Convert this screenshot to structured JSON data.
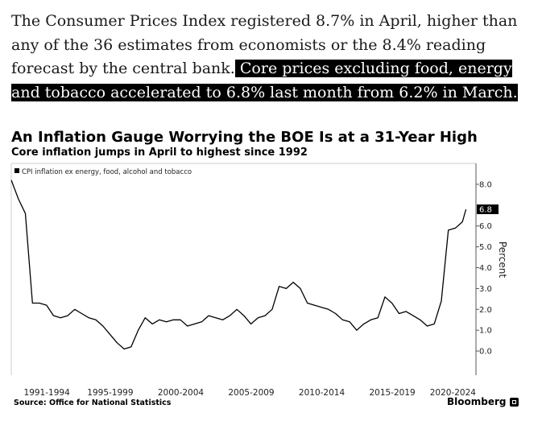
{
  "article": {
    "plain_text": "The Consumer Prices Index registered 8.7% in April, higher than any of the 36 estimates from economists or the 8.4% reading forecast by the central bank.",
    "highlighted_text": " Core prices excluding food, energy and tobacco accelerated to 6.8% last month from 6.2% in March."
  },
  "chart_data": {
    "type": "line",
    "title": "An Inflation Gauge Worrying the BOE Is at a 31-Year High",
    "subtitle": "Core inflation jumps in April to highest since 1992",
    "xlabel": "",
    "ylabel": "Percent",
    "categories": [
      "1991-1994",
      "1995-1999",
      "2000-2004",
      "2005-2009",
      "2010-2014",
      "2015-2019",
      "2020-2024"
    ],
    "x_range": [
      1991.0,
      2023.5
    ],
    "ylim": [
      -1.0,
      9.0
    ],
    "y_ticks": [
      0.0,
      1.0,
      2.0,
      3.0,
      4.0,
      5.0,
      6.0,
      8.0
    ],
    "grid": false,
    "legend_position": "top-left",
    "latest_value_label": "6.8",
    "series": [
      {
        "name": "CPI inflation ex energy, food, alcohol and tobacco",
        "color": "#000000",
        "x": [
          1991.0,
          1991.5,
          1992.0,
          1992.5,
          1993.0,
          1993.5,
          1994.0,
          1994.5,
          1995.0,
          1995.5,
          1996.0,
          1996.5,
          1997.0,
          1997.5,
          1998.0,
          1998.5,
          1999.0,
          1999.5,
          2000.0,
          2000.5,
          2001.0,
          2001.5,
          2002.0,
          2002.5,
          2003.0,
          2003.5,
          2004.0,
          2004.5,
          2005.0,
          2005.5,
          2006.0,
          2006.5,
          2007.0,
          2007.5,
          2008.0,
          2008.5,
          2009.0,
          2009.5,
          2010.0,
          2010.5,
          2011.0,
          2011.5,
          2012.0,
          2012.5,
          2013.0,
          2013.5,
          2014.0,
          2014.5,
          2015.0,
          2015.5,
          2016.0,
          2016.5,
          2017.0,
          2017.5,
          2018.0,
          2018.5,
          2019.0,
          2019.5,
          2020.0,
          2020.5,
          2021.0,
          2021.5,
          2022.0,
          2022.5,
          2023.0,
          2023.25
        ],
        "values": [
          8.2,
          7.3,
          6.6,
          2.3,
          2.3,
          2.2,
          1.7,
          1.6,
          1.7,
          2.0,
          1.8,
          1.6,
          1.5,
          1.2,
          0.8,
          0.4,
          0.1,
          0.2,
          1.0,
          1.6,
          1.3,
          1.5,
          1.4,
          1.5,
          1.5,
          1.2,
          1.3,
          1.4,
          1.7,
          1.6,
          1.5,
          1.7,
          2.0,
          1.7,
          1.3,
          1.6,
          1.7,
          2.0,
          3.1,
          3.0,
          3.3,
          3.0,
          2.3,
          2.2,
          2.1,
          2.0,
          1.8,
          1.5,
          1.4,
          1.0,
          1.3,
          1.5,
          1.6,
          2.6,
          2.3,
          1.8,
          1.9,
          1.7,
          1.5,
          1.2,
          1.3,
          2.4,
          5.8,
          5.9,
          6.2,
          6.8
        ]
      }
    ]
  },
  "source": "Source: Office for National Statistics",
  "brand": "Bloomberg"
}
